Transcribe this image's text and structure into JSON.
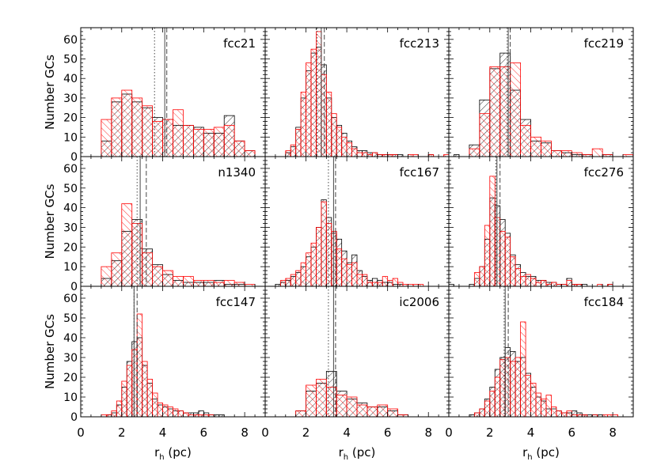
{
  "figure": {
    "ylabel": "Number GCs",
    "xlabel": "r_h (pc)",
    "xlabel_main": "r",
    "xlabel_sub": "h",
    "xlabel_unit": "(pc)",
    "x_ticks": [
      "0",
      "2",
      "4",
      "6",
      "8"
    ],
    "y_ticks": [
      "0",
      "10",
      "20",
      "30",
      "40",
      "50",
      "60"
    ],
    "colors": {
      "sample_a": "#000000",
      "sample_b": "#ff0000"
    }
  },
  "chart_data": [
    {
      "type": "bar",
      "panel": "fcc21",
      "title": "fcc21",
      "xlim": [
        0,
        9
      ],
      "ylim": [
        0,
        66
      ],
      "bin_start": 1.0,
      "bin_width": 0.5,
      "series": [
        {
          "style": "black-hatch",
          "values": [
            8,
            28,
            32,
            28,
            25,
            20,
            19,
            16,
            16,
            15,
            12,
            12,
            21,
            8,
            3
          ]
        },
        {
          "style": "red-hatch",
          "values": [
            19,
            30,
            34,
            30,
            26,
            18,
            19,
            24,
            16,
            14,
            14,
            15,
            16,
            8,
            3
          ]
        }
      ],
      "lines": {
        "solid": 4.1,
        "dashed": 4.2,
        "dotted": 3.6
      }
    },
    {
      "type": "bar",
      "panel": "fcc213",
      "title": "fcc213",
      "xlim": [
        0,
        9
      ],
      "ylim": [
        0,
        66
      ],
      "bin_start": 1.0,
      "bin_width": 0.25,
      "series": [
        {
          "style": "black-hatch",
          "values": [
            2,
            5,
            15,
            30,
            44,
            53,
            56,
            47,
            30,
            20,
            16,
            12,
            8,
            5,
            3,
            3,
            2,
            2,
            1,
            1,
            1,
            1,
            1,
            0,
            0,
            0,
            0,
            0,
            1,
            0,
            0,
            0,
            0,
            1
          ]
        },
        {
          "style": "red-hatch",
          "values": [
            3,
            6,
            14,
            33,
            48,
            55,
            64,
            42,
            33,
            22,
            15,
            10,
            7,
            4,
            2,
            2,
            1,
            2,
            1,
            1,
            1,
            1,
            0,
            0,
            1,
            1,
            0,
            0,
            1,
            0,
            0,
            1,
            0,
            0
          ]
        }
      ],
      "lines": {
        "solid": 2.75,
        "dashed": 2.9,
        "dotted": 2.55
      }
    },
    {
      "type": "bar",
      "panel": "fcc219",
      "title": "fcc219",
      "xlim": [
        0,
        9
      ],
      "ylim": [
        0,
        66
      ],
      "bin_start": 1.0,
      "bin_width": 0.5,
      "series": [
        {
          "style": "black-hatch",
          "values": [
            6,
            29,
            45,
            53,
            34,
            19,
            8,
            7,
            3,
            2,
            1,
            1,
            0,
            1,
            0,
            0
          ]
        },
        {
          "style": "red-hatch",
          "values": [
            4,
            22,
            46,
            46,
            48,
            16,
            10,
            8,
            3,
            3,
            2,
            1,
            4,
            1,
            0,
            1
          ]
        }
      ],
      "lines": {
        "solid": 2.9,
        "dashed": 3.0,
        "dotted": 2.85
      }
    },
    {
      "type": "bar",
      "panel": "n1340",
      "title": "n1340",
      "xlim": [
        0,
        9
      ],
      "ylim": [
        0,
        66
      ],
      "bin_start": 1.0,
      "bin_width": 0.5,
      "series": [
        {
          "style": "black-hatch",
          "values": [
            4,
            13,
            28,
            34,
            19,
            11,
            6,
            3,
            2,
            2,
            2,
            3,
            1,
            1,
            0
          ]
        },
        {
          "style": "red-hatch",
          "values": [
            10,
            17,
            42,
            32,
            17,
            10,
            8,
            5,
            5,
            3,
            3,
            2,
            3,
            2,
            1
          ]
        }
      ],
      "lines": {
        "solid": 2.9,
        "dashed": 3.2,
        "dotted": 2.75
      }
    },
    {
      "type": "bar",
      "panel": "fcc167",
      "title": "fcc167",
      "xlim": [
        0,
        9
      ],
      "ylim": [
        0,
        66
      ],
      "bin_start": 0.5,
      "bin_width": 0.25,
      "series": [
        {
          "style": "black-hatch",
          "values": [
            1,
            2,
            3,
            5,
            7,
            10,
            15,
            20,
            30,
            44,
            35,
            27,
            24,
            18,
            12,
            16,
            8,
            5,
            3,
            4,
            3,
            2,
            2,
            1,
            1,
            0,
            0,
            0,
            0,
            0,
            0,
            0,
            0,
            0,
            1
          ]
        },
        {
          "style": "red-hatch",
          "values": [
            0,
            3,
            4,
            6,
            8,
            12,
            17,
            22,
            30,
            43,
            32,
            28,
            19,
            14,
            11,
            12,
            6,
            6,
            2,
            2,
            2,
            5,
            3,
            4,
            2,
            1,
            1,
            1,
            1,
            0,
            0,
            0,
            0,
            0,
            0
          ]
        }
      ],
      "lines": {
        "solid": 3.35,
        "dashed": 3.45,
        "dotted": 3.1
      }
    },
    {
      "type": "bar",
      "panel": "fcc276",
      "title": "fcc276",
      "xlim": [
        0,
        9
      ],
      "ylim": [
        0,
        66
      ],
      "bin_start": 1.0,
      "bin_width": 0.25,
      "series": [
        {
          "style": "black-hatch",
          "values": [
            1,
            4,
            10,
            24,
            45,
            41,
            34,
            27,
            16,
            11,
            7,
            5,
            5,
            3,
            3,
            2,
            2,
            1,
            1,
            4,
            1,
            1,
            1,
            0,
            0,
            0,
            0,
            1
          ]
        },
        {
          "style": "red-hatch",
          "values": [
            0,
            7,
            10,
            31,
            56,
            35,
            28,
            25,
            15,
            9,
            5,
            6,
            4,
            2,
            3,
            1,
            2,
            1,
            1,
            3,
            1,
            1,
            0,
            0,
            0,
            1,
            0,
            1
          ]
        }
      ],
      "lines": {
        "solid": 2.35,
        "dashed": 2.5,
        "dotted": 2.3
      }
    },
    {
      "type": "bar",
      "panel": "fcc147",
      "title": "fcc147",
      "xlim": [
        0,
        9
      ],
      "ylim": [
        0,
        66
      ],
      "bin_start": 1.0,
      "bin_width": 0.25,
      "series": [
        {
          "style": "black-hatch",
          "values": [
            0,
            1,
            2,
            6,
            15,
            28,
            38,
            40,
            26,
            17,
            9,
            6,
            5,
            4,
            3,
            3,
            2,
            2,
            2,
            3,
            2,
            1,
            1,
            1
          ]
        },
        {
          "style": "red-hatch",
          "values": [
            1,
            1,
            3,
            8,
            18,
            26,
            34,
            52,
            28,
            19,
            12,
            7,
            6,
            5,
            4,
            3,
            2,
            1,
            1,
            1,
            1,
            1,
            0,
            0
          ]
        }
      ],
      "lines": {
        "solid": 2.6,
        "dashed": 2.75,
        "dotted": 2.6
      }
    },
    {
      "type": "bar",
      "panel": "ic2006",
      "title": "ic2006",
      "xlim": [
        0,
        9
      ],
      "ylim": [
        0,
        66
      ],
      "bin_start": 1.5,
      "bin_width": 0.5,
      "series": [
        {
          "style": "black-hatch",
          "values": [
            3,
            13,
            17,
            23,
            13,
            9,
            7,
            5,
            5,
            3,
            1
          ]
        },
        {
          "style": "red-hatch",
          "values": [
            3,
            16,
            19,
            15,
            11,
            10,
            6,
            5,
            6,
            4,
            1
          ]
        }
      ],
      "lines": {
        "solid": 3.35,
        "dashed": 3.45,
        "dotted": 3.1
      }
    },
    {
      "type": "bar",
      "panel": "fcc184",
      "title": "fcc184",
      "xlim": [
        0,
        9
      ],
      "ylim": [
        0,
        66
      ],
      "bin_start": 0.5,
      "bin_width": 0.25,
      "series": [
        {
          "style": "black-hatch",
          "values": [
            0,
            0,
            1,
            2,
            4,
            9,
            15,
            24,
            30,
            35,
            33,
            28,
            30,
            22,
            15,
            10,
            8,
            4,
            4,
            3,
            2,
            2,
            3,
            2,
            1,
            1,
            1,
            1,
            0,
            0,
            0,
            0,
            0,
            0
          ]
        },
        {
          "style": "red-hatch",
          "values": [
            0,
            0,
            0,
            2,
            4,
            8,
            13,
            20,
            29,
            30,
            28,
            30,
            48,
            21,
            17,
            12,
            9,
            11,
            5,
            3,
            2,
            3,
            1,
            1,
            1,
            0,
            1,
            0,
            1,
            1,
            1,
            0,
            0,
            0
          ]
        }
      ],
      "lines": {
        "solid": 2.75,
        "dashed": 2.9,
        "dotted": 2.7
      }
    }
  ]
}
